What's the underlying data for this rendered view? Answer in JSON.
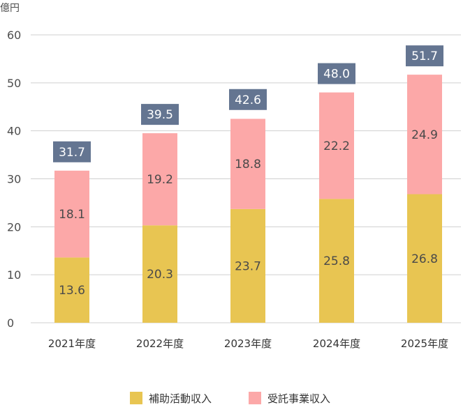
{
  "chart_data": {
    "type": "bar",
    "stacked": true,
    "unit": "億円",
    "categories": [
      "2021年度",
      "2022年度",
      "2023年度",
      "2024年度",
      "2025年度"
    ],
    "series": [
      {
        "name": "補助活動収入",
        "values": [
          13.6,
          20.3,
          23.7,
          25.8,
          26.8
        ]
      },
      {
        "name": "受託事業収入",
        "values": [
          18.1,
          19.2,
          18.8,
          22.2,
          24.9
        ]
      }
    ],
    "totals": [
      31.7,
      39.5,
      42.6,
      48.0,
      51.7
    ],
    "ylim": [
      0,
      60
    ],
    "yticks": [
      0,
      10,
      20,
      30,
      40,
      50,
      60
    ],
    "grid": true,
    "legend_position": "bottom-center"
  },
  "colors": {
    "series": [
      "#e8c552",
      "#fca8a8"
    ],
    "total_badge": "#647591",
    "grid": "#cfcfcf"
  }
}
